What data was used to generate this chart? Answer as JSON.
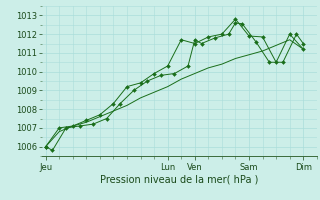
{
  "xlabel": "Pression niveau de la mer( hPa )",
  "bg_color": "#cceee8",
  "grid_color": "#aaddda",
  "line_color": "#1a6e1a",
  "ylim": [
    1005.5,
    1013.5
  ],
  "y_ticks": [
    1006,
    1007,
    1008,
    1009,
    1010,
    1011,
    1012,
    1013
  ],
  "x_day_labels": [
    "Jeu",
    "Lun",
    "Ven",
    "Sam",
    "Dim"
  ],
  "x_day_positions": [
    0,
    9,
    11,
    15,
    19
  ],
  "xlim": [
    -0.3,
    20.0
  ],
  "series1_x": [
    0,
    0.5,
    1.5,
    2.5,
    3.5,
    4.5,
    5.5,
    6.5,
    7.5,
    8.5,
    9.5,
    10.5,
    11.0,
    11.5,
    12.5,
    13.5,
    14.0,
    14.5,
    15.5,
    16.5,
    17.5,
    18.5,
    19.0
  ],
  "series1_y": [
    1006.0,
    1005.8,
    1007.0,
    1007.1,
    1007.2,
    1007.5,
    1008.3,
    1009.0,
    1009.5,
    1009.8,
    1009.9,
    1010.3,
    1011.7,
    1011.5,
    1011.8,
    1012.0,
    1012.6,
    1012.55,
    1011.6,
    1010.5,
    1010.5,
    1012.0,
    1011.5
  ],
  "series2_x": [
    0,
    1,
    2,
    3,
    4,
    5,
    6,
    7,
    8,
    9,
    10,
    11,
    12,
    13,
    14,
    15,
    16,
    17,
    18,
    19
  ],
  "series2_y": [
    1006.0,
    1006.8,
    1007.1,
    1007.3,
    1007.6,
    1007.9,
    1008.2,
    1008.6,
    1008.9,
    1009.2,
    1009.6,
    1009.9,
    1010.2,
    1010.4,
    1010.7,
    1010.9,
    1011.1,
    1011.4,
    1011.7,
    1011.2
  ],
  "series3_x": [
    0,
    1,
    2,
    3,
    4,
    5,
    6,
    7,
    8,
    9,
    10,
    11,
    12,
    13,
    14,
    15,
    16,
    17,
    18,
    19
  ],
  "series3_y": [
    1006.0,
    1007.0,
    1007.1,
    1007.4,
    1007.7,
    1008.3,
    1009.2,
    1009.4,
    1009.9,
    1010.3,
    1011.7,
    1011.5,
    1011.85,
    1012.0,
    1012.8,
    1011.9,
    1011.85,
    1010.5,
    1012.0,
    1011.2
  ]
}
